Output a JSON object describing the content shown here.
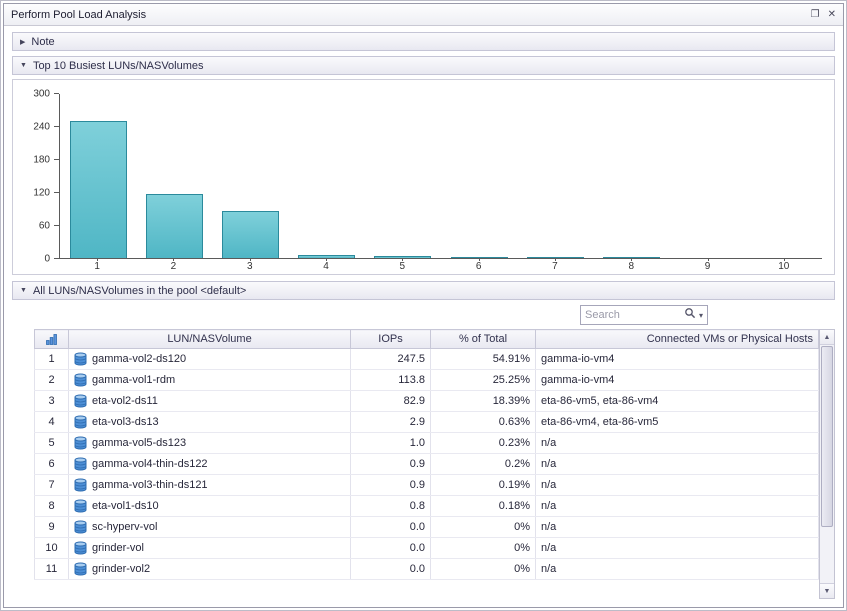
{
  "window": {
    "title": "Perform Pool Load Analysis"
  },
  "icons": {
    "float": "❐",
    "close": "✕",
    "collapsed": "▶",
    "expanded": "▼",
    "scroll_up": "▲",
    "scroll_down": "▼",
    "search_dropdown": "▾"
  },
  "sections": {
    "note": {
      "label": "Note"
    },
    "top10": {
      "label": "Top 10 Busiest LUNs/NASVolumes"
    },
    "all": {
      "label": "All LUNs/NASVolumes in the pool <default>"
    }
  },
  "chart_data": {
    "type": "bar",
    "title": "Top 10 Busiest LUNs/NASVolumes",
    "categories": [
      "1",
      "2",
      "3",
      "4",
      "5",
      "6",
      "7",
      "8",
      "9",
      "10"
    ],
    "values": [
      247.5,
      113.8,
      82.9,
      2.9,
      1.0,
      0.9,
      0.9,
      0.8,
      0.0,
      0.0
    ],
    "xlabel": "",
    "ylabel": "",
    "ylim": [
      0,
      300
    ],
    "yticks": [
      0,
      60,
      120,
      180,
      240,
      300
    ],
    "grid": false,
    "legend": "none",
    "bar_color": "#4fb6c5",
    "bar_color_light": "#7fd0da",
    "bar_border": "#2b8a9c"
  },
  "search": {
    "placeholder": "Search"
  },
  "table": {
    "headers": {
      "name": "LUN/NASVolume",
      "iops": "IOPs",
      "pct": "% of Total",
      "hosts": "Connected VMs or Physical Hosts"
    },
    "rows": [
      {
        "num": "1",
        "name": "gamma-vol2-ds120",
        "iops": "247.5",
        "pct": "54.91%",
        "hosts": "gamma-io-vm4"
      },
      {
        "num": "2",
        "name": "gamma-vol1-rdm",
        "iops": "113.8",
        "pct": "25.25%",
        "hosts": "gamma-io-vm4"
      },
      {
        "num": "3",
        "name": "eta-vol2-ds11",
        "iops": "82.9",
        "pct": "18.39%",
        "hosts": "eta-86-vm5, eta-86-vm4"
      },
      {
        "num": "4",
        "name": "eta-vol3-ds13",
        "iops": "2.9",
        "pct": "0.63%",
        "hosts": "eta-86-vm4, eta-86-vm5"
      },
      {
        "num": "5",
        "name": "gamma-vol5-ds123",
        "iops": "1.0",
        "pct": "0.23%",
        "hosts": "n/a"
      },
      {
        "num": "6",
        "name": "gamma-vol4-thin-ds122",
        "iops": "0.9",
        "pct": "0.2%",
        "hosts": "n/a"
      },
      {
        "num": "7",
        "name": "gamma-vol3-thin-ds121",
        "iops": "0.9",
        "pct": "0.19%",
        "hosts": "n/a"
      },
      {
        "num": "8",
        "name": "eta-vol1-ds10",
        "iops": "0.8",
        "pct": "0.18%",
        "hosts": "n/a"
      },
      {
        "num": "9",
        "name": "sc-hyperv-vol",
        "iops": "0.0",
        "pct": "0%",
        "hosts": "n/a"
      },
      {
        "num": "10",
        "name": "grinder-vol",
        "iops": "0.0",
        "pct": "0%",
        "hosts": "n/a"
      },
      {
        "num": "11",
        "name": "grinder-vol2",
        "iops": "0.0",
        "pct": "0%",
        "hosts": "n/a"
      }
    ]
  }
}
